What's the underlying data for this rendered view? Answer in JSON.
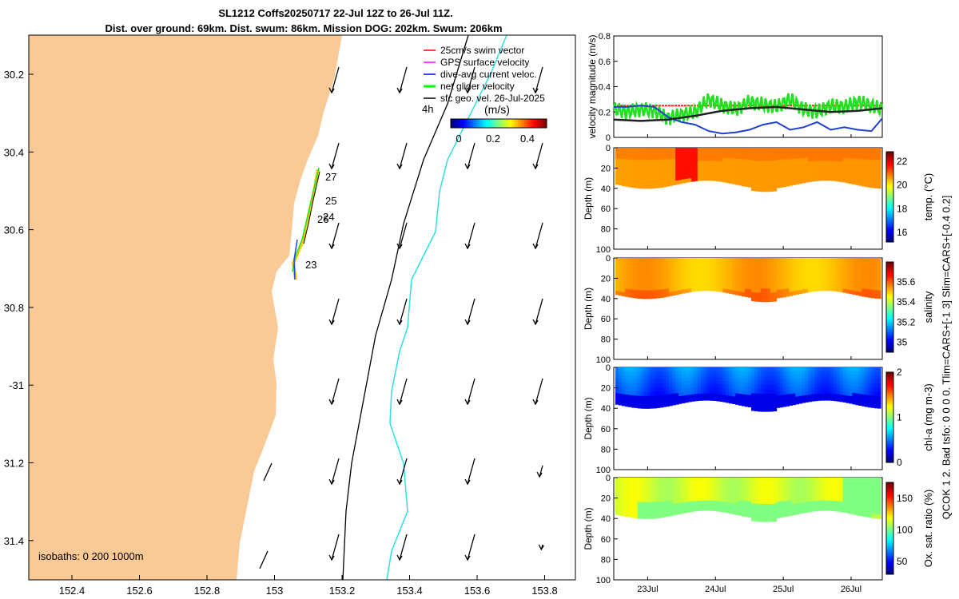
{
  "title": {
    "line1": "SL1212 Coffs20250717 22-Jul 12Z to 26-Jul 11Z.",
    "line2": "Dist. over ground: 69km. Dist. swum: 86km. Mission DOG: 202km. Swum: 206km"
  },
  "map": {
    "lon_ticks": [
      "152.4",
      "152.6",
      "152.8",
      "153",
      "153.2",
      "153.4",
      "153.6",
      "153.8"
    ],
    "lat_ticks": [
      "30.2",
      "30.4",
      "30.6",
      "30.8",
      "-31",
      "31.2",
      "31.4"
    ],
    "isobaths_label": "isobaths: 0   200  1000m",
    "legend": [
      {
        "label": "25cm/s swim vector",
        "color": "#ff0000"
      },
      {
        "label": "GPS surface velocity",
        "color": "#ff00ff"
      },
      {
        "label": "dive-avg current veloc.",
        "color": "#0000ff"
      },
      {
        "label": "net glider velocity",
        "color": "#00ff00"
      },
      {
        "label": "sfc geo. vel. 26-Jul-2025",
        "color": "#000000"
      }
    ],
    "scale_label": "4h",
    "colorbar_unit": "(m/s)",
    "colorbar_ticks": [
      "0",
      "0.2",
      "0.4"
    ],
    "day_markers": [
      "27",
      "25",
      "24",
      "26",
      "23"
    ],
    "colors": {
      "land": "#f9c996",
      "track": "#ffd000",
      "isobath_200": "#000000",
      "isobath_1000": "#30e0e0"
    }
  },
  "chart_data": [
    {
      "type": "line",
      "title": "velocity magnitude",
      "ylabel": "velocity magnitude (m/s)",
      "ylim": [
        0,
        0.8
      ],
      "yticks": [
        "0",
        "0.2",
        "0.4",
        "0.6",
        "0.8"
      ],
      "x_range_days": [
        0,
        3.96
      ],
      "series": [
        {
          "name": "25cm/s swim vector",
          "color": "#ff2020",
          "x": [
            0,
            1,
            2,
            3,
            3.96
          ],
          "values": [
            0.25,
            0.25,
            0.25,
            0.25,
            0.25
          ]
        },
        {
          "name": "net glider velocity",
          "color": "#20e020",
          "x": [
            0,
            0.2,
            0.4,
            0.6,
            0.8,
            1.0,
            1.2,
            1.4,
            1.6,
            1.8,
            2.0,
            2.2,
            2.4,
            2.6,
            2.8,
            3.0,
            3.2,
            3.4,
            3.6,
            3.8,
            3.96
          ],
          "values": [
            0.22,
            0.2,
            0.22,
            0.21,
            0.15,
            0.18,
            0.2,
            0.3,
            0.25,
            0.22,
            0.28,
            0.26,
            0.24,
            0.3,
            0.22,
            0.2,
            0.25,
            0.24,
            0.28,
            0.25,
            0.22
          ]
        },
        {
          "name": "dive-avg current veloc.",
          "color": "#2040d0",
          "x": [
            0,
            0.2,
            0.4,
            0.6,
            0.8,
            1.0,
            1.2,
            1.4,
            1.6,
            1.8,
            2.0,
            2.2,
            2.4,
            2.6,
            2.8,
            3.0,
            3.2,
            3.4,
            3.6,
            3.8,
            3.96
          ],
          "values": [
            0.24,
            0.24,
            0.25,
            0.24,
            0.16,
            0.12,
            0.1,
            0.05,
            0.03,
            0.04,
            0.06,
            0.1,
            0.12,
            0.06,
            0.08,
            0.12,
            0.06,
            0.08,
            0.06,
            0.05,
            0.15
          ]
        },
        {
          "name": "sfc geo. vel.",
          "color": "#202020",
          "x": [
            0,
            0.4,
            0.8,
            1.2,
            1.6,
            2.0,
            2.4,
            2.8,
            3.2,
            3.6,
            3.96
          ],
          "values": [
            0.14,
            0.13,
            0.14,
            0.17,
            0.21,
            0.23,
            0.24,
            0.22,
            0.2,
            0.21,
            0.23
          ]
        }
      ]
    },
    {
      "type": "heatmap",
      "name": "temperature",
      "ylabel": "Depth (m)",
      "ylim": [
        0,
        100
      ],
      "yticks": [
        "0",
        "20",
        "40",
        "60",
        "80",
        "100"
      ],
      "colorbar_label": "temp. (°C)",
      "colorbar_ticks": [
        "16",
        "18",
        "20",
        "22"
      ],
      "crange": [
        15.2,
        22.8
      ],
      "values_mean": 21.0
    },
    {
      "type": "heatmap",
      "name": "salinity",
      "ylabel": "Depth (m)",
      "ylim": [
        0,
        100
      ],
      "yticks": [
        "0",
        "20",
        "40",
        "60",
        "80",
        "100"
      ],
      "colorbar_label": "salinity",
      "colorbar_ticks": [
        "35",
        "35.2",
        "35.4",
        "35.6"
      ],
      "crange": [
        34.9,
        35.8
      ],
      "values_mean": 35.5
    },
    {
      "type": "heatmap",
      "name": "chlorophyll",
      "ylabel": "Depth (m)",
      "ylim": [
        0,
        100
      ],
      "yticks": [
        "0",
        "20",
        "40",
        "60",
        "80",
        "100"
      ],
      "colorbar_label": "chl-a (mg m-3)",
      "colorbar_ticks": [
        "0",
        "1",
        "2"
      ],
      "crange": [
        0,
        2
      ],
      "values_mean": 0.3
    },
    {
      "type": "heatmap",
      "name": "oxygen",
      "ylabel": "Depth (m)",
      "ylim": [
        0,
        100
      ],
      "yticks": [
        "0",
        "20",
        "40",
        "60",
        "80",
        "100"
      ],
      "xticks": [
        "23Jul",
        "24Jul",
        "25Jul",
        "26Jul"
      ],
      "colorbar_label": "Ox. sat. ratio (%)",
      "colorbar_ticks": [
        "50",
        "100",
        "150"
      ],
      "crange": [
        30,
        175
      ],
      "values_mean": 112
    }
  ],
  "side_label": "QCOK 1  2. Bad tsfo: 0  0  0  0. Tlim=CARS+[-1 3] Slim=CARS+[-0.4 0.2]"
}
